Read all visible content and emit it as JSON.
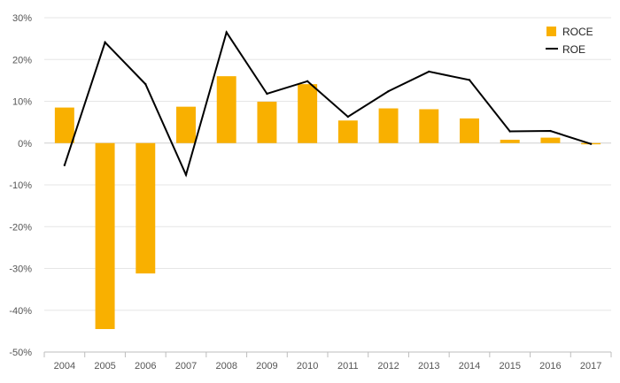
{
  "chart_data": {
    "type": "bar",
    "categories": [
      "2004",
      "2005",
      "2006",
      "2007",
      "2008",
      "2009",
      "2010",
      "2011",
      "2012",
      "2013",
      "2014",
      "2015",
      "2016",
      "2017"
    ],
    "series": [
      {
        "name": "ROCE",
        "kind": "bar",
        "color": "#F9B000",
        "values": [
          8.5,
          -44.5,
          -31.2,
          8.7,
          16.0,
          9.9,
          14.1,
          5.4,
          8.3,
          8.1,
          5.9,
          0.8,
          1.3,
          -0.3
        ]
      },
      {
        "name": "ROE",
        "kind": "line",
        "color": "#000000",
        "values": [
          -5.3,
          24.1,
          14.1,
          -7.6,
          26.5,
          11.8,
          14.8,
          6.3,
          12.4,
          17.1,
          15.1,
          2.8,
          2.9,
          -0.2
        ]
      }
    ],
    "ytick_labels": [
      "30%",
      "20%",
      "10%",
      "0%",
      "-10%",
      "-20%",
      "-30%",
      "-40%",
      "-50%"
    ],
    "ytick_values": [
      30,
      20,
      10,
      0,
      -10,
      -20,
      -30,
      -40,
      -50
    ],
    "ylim": [
      -50,
      30
    ],
    "xlabel": "",
    "ylabel": "",
    "title": "",
    "grid": true,
    "legend_position": "top-right"
  }
}
